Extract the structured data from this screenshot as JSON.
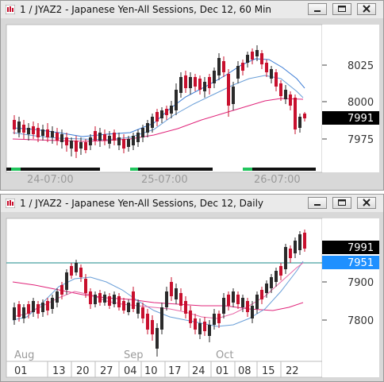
{
  "top_window": {
    "title": "1 / JYAZ2 - Japanese Yen-All Sessions, Dec 12, 60 Min",
    "price_labels": [
      "8025",
      "8000",
      "7975"
    ],
    "last_price": "7991",
    "time_labels": [
      "24-07:00",
      "25-07:00",
      "26-07:00"
    ],
    "colors": {
      "up": "#2a2a2a",
      "down": "#c8102e",
      "ma_fast": "#3a7bd5",
      "ma_mid": "#6a9fd8",
      "ma_slow": "#e0247a"
    }
  },
  "bottom_window": {
    "title": "1 / JYAZ2 - Japanese Yen-All Sessions, Dec 12, Daily",
    "price_labels": [
      "7900",
      "7800"
    ],
    "last_price": "7991",
    "line_price": "7951",
    "month_labels": [
      "Aug",
      "Sep",
      "Oct"
    ],
    "date_labels": [
      "01",
      "13",
      "20",
      "27",
      "04",
      "10",
      "17",
      "24",
      "01",
      "08",
      "15",
      "22"
    ],
    "colors": {
      "up": "#2a2a2a",
      "down": "#c8102e",
      "hline": "#1a8a8a",
      "line_price_bg": "#1e90ff"
    }
  },
  "window_buttons": [
    "minimize-icon",
    "maximize-icon",
    "close-icon"
  ]
}
